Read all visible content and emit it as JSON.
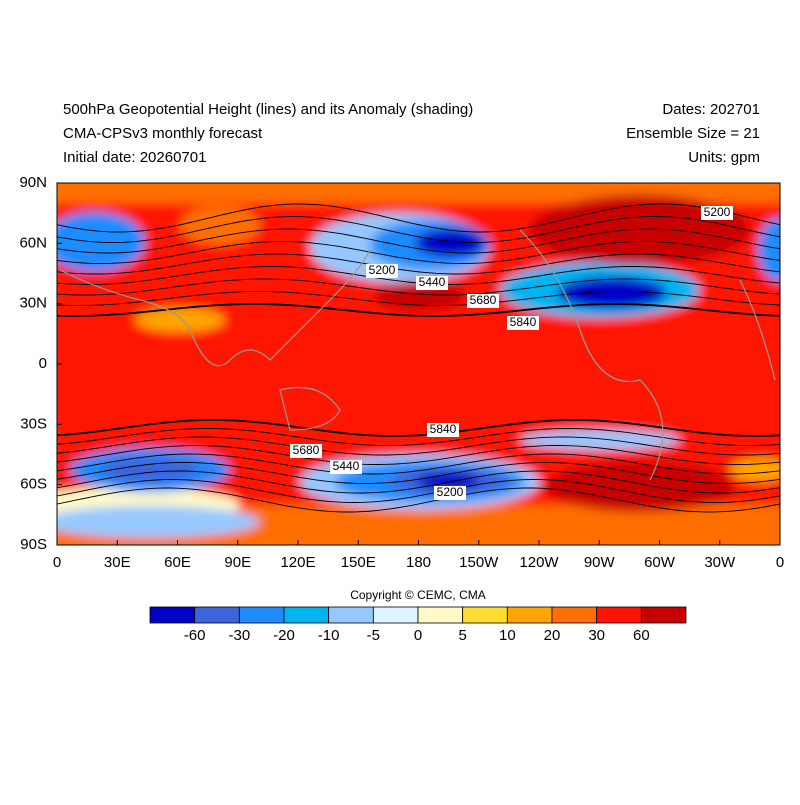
{
  "header": {
    "title": "500hPa Geopotential Height (lines) and its Anomaly (shading)",
    "subtitle": "CMA-CPSv3 monthly forecast",
    "initial_date": "Initial date: 20260701",
    "dates": "Dates: 202701",
    "ensemble": "Ensemble Size = 21",
    "units": "Units: gpm"
  },
  "map": {
    "x_labels": [
      "0",
      "30E",
      "60E",
      "90E",
      "120E",
      "150E",
      "180",
      "150W",
      "120W",
      "90W",
      "60W",
      "30W",
      "0"
    ],
    "y_labels": [
      "90N",
      "60N",
      "30N",
      "0",
      "30S",
      "60S",
      "90S"
    ],
    "contour_labels": [
      "5200",
      "5200",
      "5440",
      "5680",
      "5840",
      "5840",
      "5680",
      "5440",
      "5200"
    ]
  },
  "copyright": "Copyright © CEMC, CMA",
  "colorbar": {
    "levels": [
      -60,
      -30,
      -20,
      -10,
      -5,
      0,
      5,
      10,
      20,
      30,
      60
    ],
    "colors": [
      "#0000c8",
      "#3c64dc",
      "#1e8cff",
      "#00b4f0",
      "#96c8ff",
      "#dcf5ff",
      "#fffac8",
      "#ffdc32",
      "#ffa500",
      "#ff6e00",
      "#ff1400",
      "#c80000"
    ]
  }
}
